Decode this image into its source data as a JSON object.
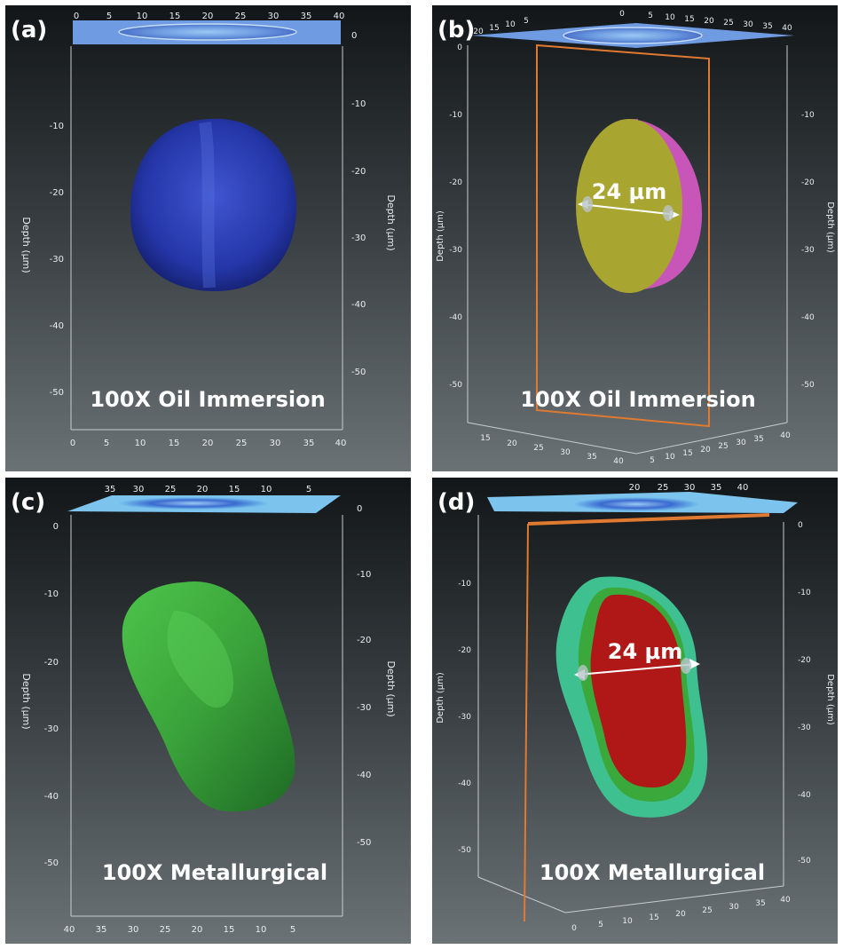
{
  "panels": [
    {
      "id": "a",
      "label": "(a)",
      "caption": "100X Oil Immersion",
      "left_axis_label": "Depth (μm)",
      "right_axis_label": "Depth (μm)",
      "top_ticks": [
        "0",
        "5",
        "10",
        "15",
        "20",
        "25",
        "30",
        "35",
        "40"
      ],
      "bottom_ticks": [
        "0",
        "5",
        "10",
        "15",
        "20",
        "25",
        "30",
        "35",
        "40"
      ],
      "left_ticks": [
        "-10",
        "-20",
        "-30",
        "-40",
        "-50"
      ],
      "right_ticks": [
        "0",
        "-10",
        "-20",
        "-30",
        "-40",
        "-50"
      ],
      "cell_color": "#2a3fb0"
    },
    {
      "id": "b",
      "label": "(b)",
      "caption": "100X Oil Immersion",
      "measurement": "24 μm",
      "left_axis_label": "Depth (μm)",
      "right_axis_label": "Depth (μm)",
      "top_ticks": [
        "20",
        "15",
        "10",
        "5",
        "0",
        "5",
        "10",
        "15",
        "20",
        "25",
        "30",
        "35",
        "40"
      ],
      "bottom_ticks_left": [
        "15",
        "20",
        "25",
        "30",
        "35",
        "40"
      ],
      "bottom_ticks_right": [
        "5",
        "10",
        "15",
        "20",
        "25",
        "30",
        "35",
        "40"
      ],
      "left_ticks": [
        "0",
        "-10",
        "-20",
        "-30",
        "-40",
        "-50"
      ],
      "right_ticks": [
        "-10",
        "-20",
        "-30",
        "-40",
        "-50"
      ],
      "cell_color": "#a8a630",
      "cell_edge_color": "#c855b8",
      "plane_color": "#e07a30"
    },
    {
      "id": "c",
      "label": "(c)",
      "caption": "100X Metallurgical",
      "left_axis_label": "Depth (μm)",
      "right_axis_label": "Depth (μm)",
      "top_ticks": [
        "35",
        "30",
        "25",
        "20",
        "15",
        "10",
        "5"
      ],
      "bottom_ticks": [
        "40",
        "35",
        "30",
        "25",
        "20",
        "15",
        "10",
        "5"
      ],
      "left_ticks": [
        "0",
        "-10",
        "-20",
        "-30",
        "-40",
        "-50"
      ],
      "right_ticks": [
        "0",
        "-10",
        "-20",
        "-30",
        "-40",
        "-50"
      ],
      "cell_color": "#3fae3a"
    },
    {
      "id": "d",
      "label": "(d)",
      "caption": "100X Metallurgical",
      "measurement": "24 μm",
      "left_axis_label": "Depth (μm)",
      "right_axis_label": "Depth (μm)",
      "top_ticks": [
        "20",
        "25",
        "30",
        "35",
        "40"
      ],
      "bottom_ticks": [
        "0",
        "5",
        "10",
        "15",
        "20",
        "25",
        "30",
        "35",
        "40"
      ],
      "left_ticks": [
        "-10",
        "-20",
        "-30",
        "-40",
        "-50"
      ],
      "right_ticks": [
        "0",
        "-10",
        "-20",
        "-30",
        "-40",
        "-50"
      ],
      "cell_color": "#b01818",
      "cell_edge_color": "#3fc090",
      "plane_color": "#e07a30"
    }
  ]
}
